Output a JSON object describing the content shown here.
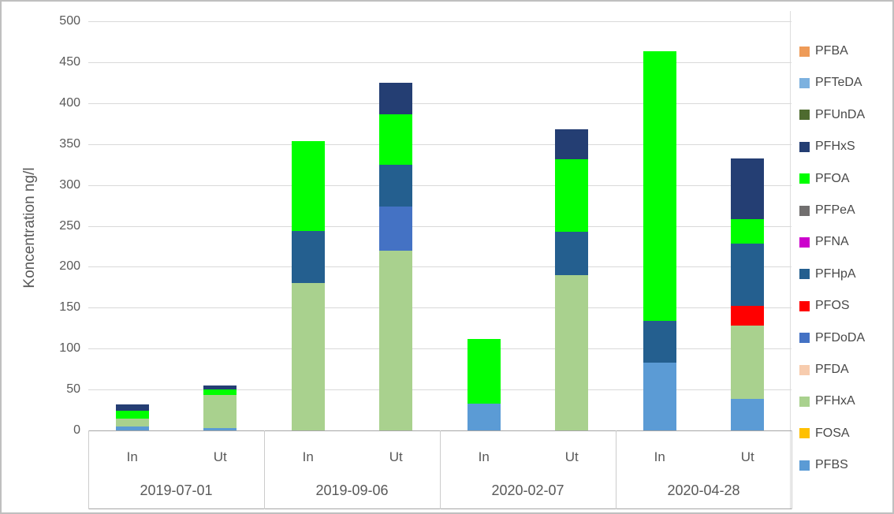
{
  "chart_data": {
    "type": "bar",
    "stacked": true,
    "title": "",
    "xlabel": "",
    "ylabel": "Koncentration ng/l",
    "ylim": [
      0,
      500
    ],
    "yticks": [
      "0",
      "50",
      "100",
      "150",
      "200",
      "250",
      "300",
      "350",
      "400",
      "450",
      "500"
    ],
    "grid": true,
    "legend_position": "right",
    "group_labels": [
      "2019-07-01",
      "2019-09-06",
      "2020-02-07",
      "2020-04-28"
    ],
    "bar_labels": [
      "In",
      "Ut",
      "In",
      "Ut",
      "In",
      "Ut",
      "In",
      "Ut"
    ],
    "legend_order_top_to_bottom": [
      "PFBA",
      "PFTeDA",
      "PFUnDA",
      "PFHxS",
      "PFOA",
      "PFPeA",
      "PFNA",
      "PFHpA",
      "PFOS",
      "PFDoDA",
      "PFDA",
      "PFHxA",
      "FOSA",
      "PFBS"
    ],
    "series_colors": {
      "PFBA": "#ee9b58",
      "PFTeDA": "#7cb1df",
      "PFUnDA": "#4e6b2f",
      "PFHxS": "#243e73",
      "PFOA": "#00ff00",
      "PFPeA": "#716f6f",
      "PFNA": "#cc00cc",
      "PFHpA": "#245f8f",
      "PFOS": "#ff0000",
      "PFDoDA": "#4472c4",
      "PFDA": "#f7ccae",
      "PFHxA": "#a9d18e",
      "FOSA": "#ffc000",
      "PFBS": "#5b9bd5"
    },
    "series_stack_bottom_to_top": [
      {
        "name": "PFBS",
        "values": [
          5,
          3,
          0,
          0,
          33,
          0,
          83,
          39
        ]
      },
      {
        "name": "FOSA",
        "values": [
          0,
          0,
          0,
          0,
          0,
          0,
          0,
          0
        ]
      },
      {
        "name": "PFHxA",
        "values": [
          9,
          40,
          180,
          220,
          0,
          190,
          0,
          89
        ]
      },
      {
        "name": "PFDA",
        "values": [
          0,
          0,
          0,
          0,
          0,
          0,
          0,
          0
        ]
      },
      {
        "name": "PFDoDA",
        "values": [
          0,
          0,
          0,
          54,
          0,
          0,
          0,
          0
        ]
      },
      {
        "name": "PFOS",
        "values": [
          0,
          0,
          0,
          0,
          0,
          0,
          0,
          24
        ]
      },
      {
        "name": "PFHpA",
        "values": [
          0,
          0,
          64,
          51,
          0,
          53,
          51,
          76
        ]
      },
      {
        "name": "PFNA",
        "values": [
          0,
          0,
          0,
          0,
          0,
          0,
          0,
          0
        ]
      },
      {
        "name": "PFPeA",
        "values": [
          0,
          0,
          0,
          0,
          0,
          0,
          0,
          0
        ]
      },
      {
        "name": "PFOA",
        "values": [
          10,
          7,
          110,
          61,
          79,
          88,
          329,
          30
        ]
      },
      {
        "name": "PFHxS",
        "values": [
          8,
          5,
          0,
          39,
          0,
          37,
          0,
          74
        ]
      },
      {
        "name": "PFUnDA",
        "values": [
          0,
          0,
          0,
          0,
          0,
          0,
          0,
          0
        ]
      },
      {
        "name": "PFTeDA",
        "values": [
          0,
          0,
          0,
          0,
          0,
          0,
          0,
          0
        ]
      },
      {
        "name": "PFBA",
        "values": [
          0,
          0,
          0,
          0,
          0,
          0,
          0,
          0
        ]
      }
    ],
    "bar_totals": [
      32,
      55,
      354,
      425,
      112,
      368,
      463,
      332
    ]
  }
}
